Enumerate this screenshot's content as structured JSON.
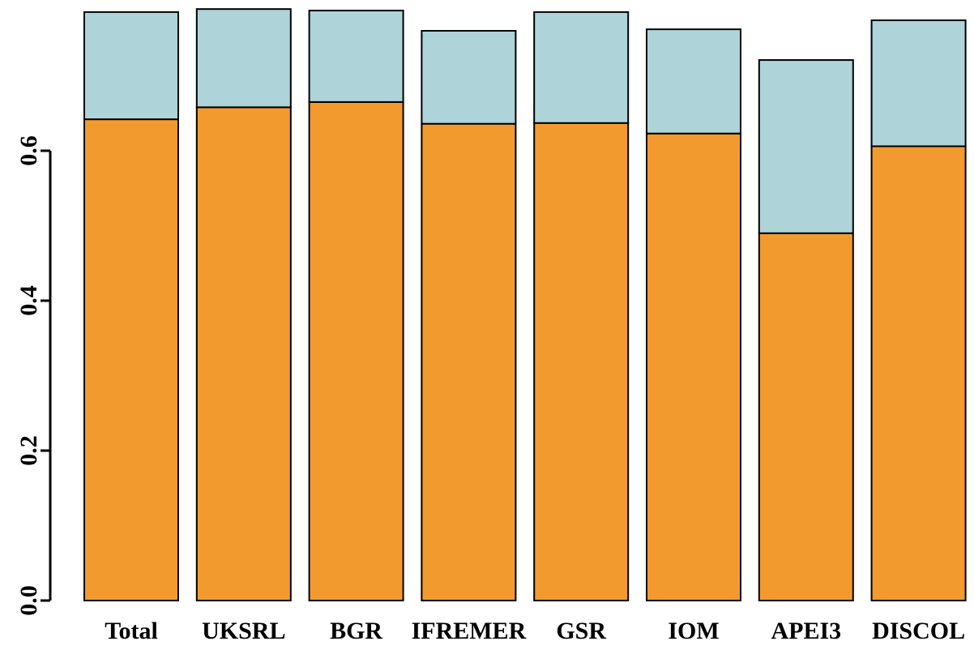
{
  "chart_data": {
    "type": "stacked_bar",
    "categories": [
      "Total",
      "UKSRL",
      "BGR",
      "IFREMER",
      "GSR",
      "IOM",
      "APEI3",
      "DISCOL"
    ],
    "series": [
      {
        "color": "#f39a2e",
        "values": [
          0.642,
          0.658,
          0.665,
          0.636,
          0.637,
          0.623,
          0.49,
          0.606
        ]
      },
      {
        "color": "#aed4da",
        "values": [
          0.143,
          0.131,
          0.122,
          0.124,
          0.148,
          0.139,
          0.231,
          0.168
        ]
      }
    ],
    "ylim": [
      0,
      0.8
    ],
    "yticks": [
      {
        "value": 0,
        "label": "0.0"
      },
      0.2,
      0.4,
      0.6
    ]
  }
}
